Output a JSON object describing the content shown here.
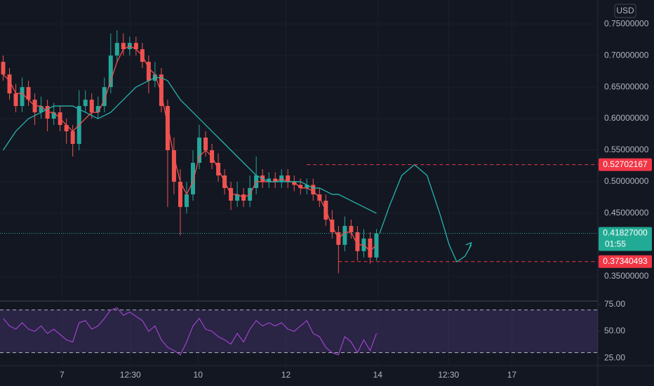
{
  "chart_data": [
    {
      "type": "candlestick",
      "currency": "USD",
      "open": [
        0.69,
        0.67,
        0.64,
        0.62,
        0.65,
        0.63,
        0.61,
        0.62,
        0.6,
        0.61,
        0.59,
        0.58,
        0.56,
        0.62,
        0.63,
        0.61,
        0.62,
        0.65,
        0.7,
        0.72,
        0.71,
        0.72,
        0.71,
        0.69,
        0.66,
        0.67,
        0.62,
        0.55,
        0.5,
        0.46,
        0.48,
        0.53,
        0.57,
        0.55,
        0.53,
        0.51,
        0.49,
        0.47,
        0.48,
        0.47,
        0.49,
        0.51,
        0.5,
        0.505,
        0.5,
        0.51,
        0.5,
        0.495,
        0.49,
        0.495,
        0.48,
        0.47,
        0.44,
        0.42,
        0.4,
        0.43,
        0.42,
        0.39,
        0.41,
        0.38
      ],
      "high": [
        0.7,
        0.68,
        0.655,
        0.665,
        0.66,
        0.64,
        0.635,
        0.63,
        0.625,
        0.62,
        0.6,
        0.59,
        0.645,
        0.645,
        0.64,
        0.635,
        0.665,
        0.735,
        0.74,
        0.735,
        0.73,
        0.73,
        0.72,
        0.7,
        0.69,
        0.68,
        0.63,
        0.57,
        0.52,
        0.5,
        0.55,
        0.59,
        0.58,
        0.56,
        0.545,
        0.52,
        0.5,
        0.5,
        0.49,
        0.51,
        0.54,
        0.52,
        0.515,
        0.515,
        0.52,
        0.52,
        0.51,
        0.505,
        0.505,
        0.505,
        0.49,
        0.48,
        0.455,
        0.43,
        0.445,
        0.44,
        0.43,
        0.425,
        0.42,
        0.425
      ],
      "low": [
        0.66,
        0.63,
        0.61,
        0.61,
        0.62,
        0.59,
        0.6,
        0.58,
        0.59,
        0.58,
        0.56,
        0.54,
        0.55,
        0.61,
        0.6,
        0.6,
        0.61,
        0.64,
        0.69,
        0.7,
        0.7,
        0.7,
        0.68,
        0.64,
        0.65,
        0.61,
        0.46,
        0.48,
        0.415,
        0.45,
        0.47,
        0.52,
        0.54,
        0.52,
        0.5,
        0.48,
        0.455,
        0.46,
        0.46,
        0.46,
        0.48,
        0.49,
        0.49,
        0.49,
        0.49,
        0.49,
        0.485,
        0.48,
        0.48,
        0.47,
        0.46,
        0.43,
        0.41,
        0.355,
        0.39,
        0.41,
        0.375,
        0.38,
        0.37,
        0.375
      ],
      "close": [
        0.67,
        0.64,
        0.62,
        0.65,
        0.63,
        0.61,
        0.62,
        0.6,
        0.61,
        0.59,
        0.58,
        0.56,
        0.62,
        0.63,
        0.61,
        0.62,
        0.65,
        0.7,
        0.72,
        0.71,
        0.72,
        0.71,
        0.69,
        0.66,
        0.67,
        0.62,
        0.55,
        0.5,
        0.46,
        0.48,
        0.53,
        0.57,
        0.55,
        0.53,
        0.51,
        0.49,
        0.47,
        0.48,
        0.47,
        0.49,
        0.51,
        0.5,
        0.505,
        0.5,
        0.51,
        0.5,
        0.495,
        0.49,
        0.495,
        0.48,
        0.47,
        0.44,
        0.42,
        0.4,
        0.43,
        0.42,
        0.39,
        0.41,
        0.38,
        0.418
      ],
      "up_color": "#26a69a",
      "down_color": "#ef5350",
      "lines": [
        {
          "color": "#f0504f",
          "values": [
            0.67,
            0.66,
            0.64,
            0.64,
            0.63,
            0.62,
            0.62,
            0.61,
            0.61,
            0.6,
            0.59,
            0.58,
            0.59,
            0.6,
            0.61,
            0.61,
            0.63,
            0.66,
            0.69,
            0.71,
            0.715,
            0.71,
            0.7,
            0.68,
            0.67,
            0.64,
            0.59,
            0.54,
            0.5,
            0.48,
            0.5,
            0.54,
            0.55,
            0.54,
            0.52,
            0.5,
            0.48,
            0.48,
            0.475,
            0.48,
            0.5,
            0.5,
            0.5,
            0.5,
            0.505,
            0.5,
            0.5,
            0.49,
            0.49,
            0.485,
            0.475,
            0.455,
            0.43,
            0.41,
            0.42,
            0.42,
            0.4,
            0.4,
            0.39,
            0.4
          ]
        },
        {
          "color": "#26b5ad",
          "values": [
            0.55,
            0.565,
            0.58,
            0.59,
            0.6,
            0.605,
            0.61,
            0.615,
            0.62,
            0.62,
            0.62,
            0.62,
            0.615,
            0.61,
            0.605,
            0.6,
            0.605,
            0.61,
            0.62,
            0.63,
            0.64,
            0.65,
            0.655,
            0.66,
            0.665,
            0.665,
            0.66,
            0.645,
            0.63,
            0.62,
            0.61,
            0.6,
            0.59,
            0.58,
            0.57,
            0.56,
            0.55,
            0.54,
            0.53,
            0.52,
            0.51,
            0.505,
            0.5,
            0.5,
            0.5,
            0.5,
            0.5,
            0.5,
            0.495,
            0.49,
            0.49,
            0.485,
            0.48,
            0.48,
            0.475,
            0.47,
            0.465,
            0.46,
            0.455,
            0.45
          ]
        }
      ],
      "projection": {
        "color": "#26b5ad",
        "x": [
          59.5,
          61,
          63,
          65,
          67,
          69,
          70.5,
          71.7,
          73,
          74
        ],
        "y": [
          0.418,
          0.46,
          0.51,
          0.527,
          0.51,
          0.45,
          0.4,
          0.373,
          0.382,
          0.4
        ]
      },
      "levels": [
        {
          "value": 0.52702167,
          "start": 48,
          "color": "#f23645"
        },
        {
          "value": 0.37340493,
          "start": 53,
          "color": "#f23645"
        }
      ],
      "current": {
        "value": 0.41827,
        "label": "0.41827000",
        "countdown": "01:55",
        "color": "#22ab94"
      },
      "xlim": [
        -0.5,
        94
      ],
      "xticks": [
        {
          "value": 9.3,
          "label": "7"
        },
        {
          "value": 20.1,
          "label": "12:30"
        },
        {
          "value": 30.8,
          "label": "10"
        },
        {
          "value": 44.7,
          "label": "12"
        },
        {
          "value": 59.2,
          "label": "14"
        },
        {
          "value": 70.4,
          "label": "12:30"
        },
        {
          "value": 80.4,
          "label": "17"
        }
      ],
      "ylim": [
        0.312,
        0.788
      ],
      "yticks": [
        {
          "value": 0.75,
          "label": "0.75000000"
        },
        {
          "value": 0.7,
          "label": "0.70000000"
        },
        {
          "value": 0.65,
          "label": "0.65000000"
        },
        {
          "value": 0.6,
          "label": "0.60000000"
        },
        {
          "value": 0.55,
          "label": "0.55000000"
        },
        {
          "value": 0.5,
          "label": "0.50000000"
        },
        {
          "value": 0.45,
          "label": "0.45000000"
        },
        {
          "value": 0.35,
          "label": "0.35000000"
        }
      ]
    },
    {
      "type": "line",
      "series": [
        {
          "color": "#9c45c9",
          "values": [
            62,
            55,
            52,
            58,
            52,
            50,
            55,
            48,
            52,
            47,
            42,
            40,
            58,
            60,
            52,
            55,
            62,
            70,
            72,
            65,
            68,
            64,
            60,
            50,
            55,
            42,
            35,
            32,
            28,
            40,
            55,
            62,
            52,
            50,
            45,
            42,
            38,
            48,
            40,
            52,
            60,
            55,
            58,
            55,
            58,
            52,
            50,
            55,
            60,
            48,
            45,
            35,
            30,
            28,
            45,
            40,
            30,
            42,
            32,
            48
          ]
        }
      ],
      "bands": [
        70,
        30
      ],
      "band_color": "#7e57c2",
      "ylim": [
        17.9,
        77.6
      ],
      "yticks": [
        {
          "value": 75,
          "label": "75.00"
        },
        {
          "value": 50,
          "label": "50.00"
        },
        {
          "value": 25,
          "label": "25.00"
        }
      ]
    }
  ]
}
